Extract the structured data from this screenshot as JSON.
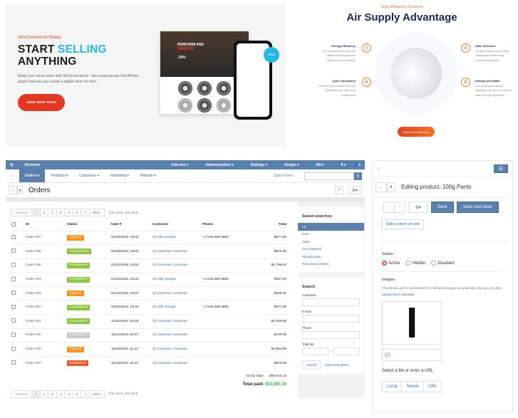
{
  "woo_banner": {
    "kicker": "WooCommerce Ready",
    "headline_1": "START",
    "headline_hl": "SELLING",
    "headline_2": "ANYTHING",
    "description": "Build your online store with WooCommerce - the most popular WordPress plugin that lets you create a digital shop for free!",
    "cta": "VIEW SHOP PAGE",
    "mock_hero_1": "PERFORM AND",
    "mock_hero_2": "INSPIRE",
    "mock_discount": "-20%",
    "badge": "woo",
    "colors": {
      "accent": "#22b9e4",
      "cta": "#e3381f"
    }
  },
  "air_banner": {
    "kicker": "High-Efficiency Systems",
    "title": "Air Supply Advantage",
    "features": [
      {
        "title": "Energy Efficiency",
        "text": "Our company offers the most efficient and the greenest options for home heating.",
        "icon": "faucet-icon"
      },
      {
        "title": "Quiet Operations",
        "text": "Our team uses only the best and particularly low-noise drive components",
        "icon": "fan-icon"
      },
      {
        "title": "Wide Selection",
        "text": "We offer a wide range of high quality water heaters and conditioning supplies",
        "icon": "gear-icon"
      },
      {
        "title": "Heating and Water",
        "text": "Our company carries out installation, service and repair of water and gas appliances",
        "icon": "recycle-icon"
      }
    ],
    "cta": "More About Services",
    "colors": {
      "accent": "#f27128",
      "title": "#1c2854"
    }
  },
  "admin": {
    "brand": "Simtech",
    "top_menu": [
      "Add-ons",
      "Administration",
      "Settings",
      "Design",
      "EN",
      "$"
    ],
    "nav": [
      "Orders",
      "Products",
      "Customers",
      "Marketing",
      "Website"
    ],
    "quick_menu": "Quick menu",
    "page_title": "Orders",
    "pager": {
      "prev": "‹ Previous",
      "pages": [
        "1",
        "2",
        "3",
        "4",
        "5",
        "6",
        "7"
      ],
      "next": "Next ›",
      "total_label": "Total items:",
      "total_value": "64 / 10"
    },
    "columns": [
      "ID",
      "Status",
      "Date",
      "Customer",
      "Phone",
      "Total"
    ],
    "orders": [
      {
        "id": "Order #97",
        "status": "Open",
        "date": "01/23/2018, 19:01",
        "customer": "Nills George",
        "phone": "+1 646-386-3600",
        "total": "$677.95"
      },
      {
        "id": "Order #96",
        "status": "Processed",
        "date": "01/23/2018, 19:01",
        "customer": "Customer Customer",
        "phone": "",
        "total": "$972.00"
      },
      {
        "id": "Order #95",
        "status": "Complete",
        "date": "01/23/2018, 19:01",
        "customer": "Customer Customer",
        "phone": "",
        "total": "$1,799.94"
      },
      {
        "id": "Order #94",
        "status": "Complete",
        "date": "01/22/2018, 19:24",
        "customer": "Nills George",
        "phone": "+1 646-386-3600",
        "total": "$297.00"
      },
      {
        "id": "Order #93",
        "status": "Open",
        "date": "01/22/2018, 19:07",
        "customer": "Customer Customer",
        "phone": "",
        "total": "$150.00"
      },
      {
        "id": "Order #92",
        "status": "Complete",
        "date": "01/22/2018, 19:01",
        "customer": "Nills George",
        "phone": "+1 646-386-3600",
        "total": "$677.95"
      },
      {
        "id": "Order #91",
        "status": "Complete",
        "date": "11/22/2013, 03:25",
        "customer": "Customer Customer",
        "phone": "",
        "total": "$1,048.99"
      },
      {
        "id": "Order #90",
        "status": "Canceled",
        "date": "11/21/2013, 02:47",
        "customer": "Customer Customer",
        "phone": "",
        "total": "$749.95"
      },
      {
        "id": "Order #89",
        "status": "Open",
        "date": "11/20/2013, 11:14",
        "customer": "Customer Customer",
        "phone": "",
        "total": "$2,994.86"
      },
      {
        "id": "Order #87",
        "status": "Declined",
        "date": "11/19/2013, 04:47",
        "customer": "Customer Customer",
        "phone": "",
        "total": "$972.00"
      }
    ],
    "status_colors": {
      "Open": "#f7941d",
      "Processed": "#8dc63f",
      "Complete": "#8dc63f",
      "Canceled": "#c8c8c8",
      "Declined": "#f05a28"
    },
    "gross_label": "Gross total:",
    "gross_value": "$69,915.15",
    "paid_label": "Total paid:",
    "paid_value": "$53,580.18",
    "saved_searches": {
      "title": "Saved searches",
      "items": [
        "All",
        "New",
        "Open",
        "Uncompleted",
        "Placed today",
        "New saved search"
      ]
    },
    "search": {
      "title": "Search",
      "customer": "Customer",
      "email": "E-mail",
      "phone": "Phone",
      "total": "Total ($)",
      "button": "Search",
      "advanced": "Advanced search"
    }
  },
  "product": {
    "title": "Editing product: 100g Pants",
    "save": "Save",
    "save_close": "Save and close",
    "edit_onsite": "Edit content on-site",
    "status_label": "Status:",
    "statuses": [
      "Active",
      "Hidden",
      "Disabled"
    ],
    "status_selected": "Active",
    "images_label": "Images:",
    "hint": "Thumbnails will be generated from detailed images automatically, but you can also",
    "hint_link": "upload them manually.",
    "select_file": "Select a file or enter a URL",
    "sources": [
      "Local",
      "Server",
      "URL"
    ]
  }
}
